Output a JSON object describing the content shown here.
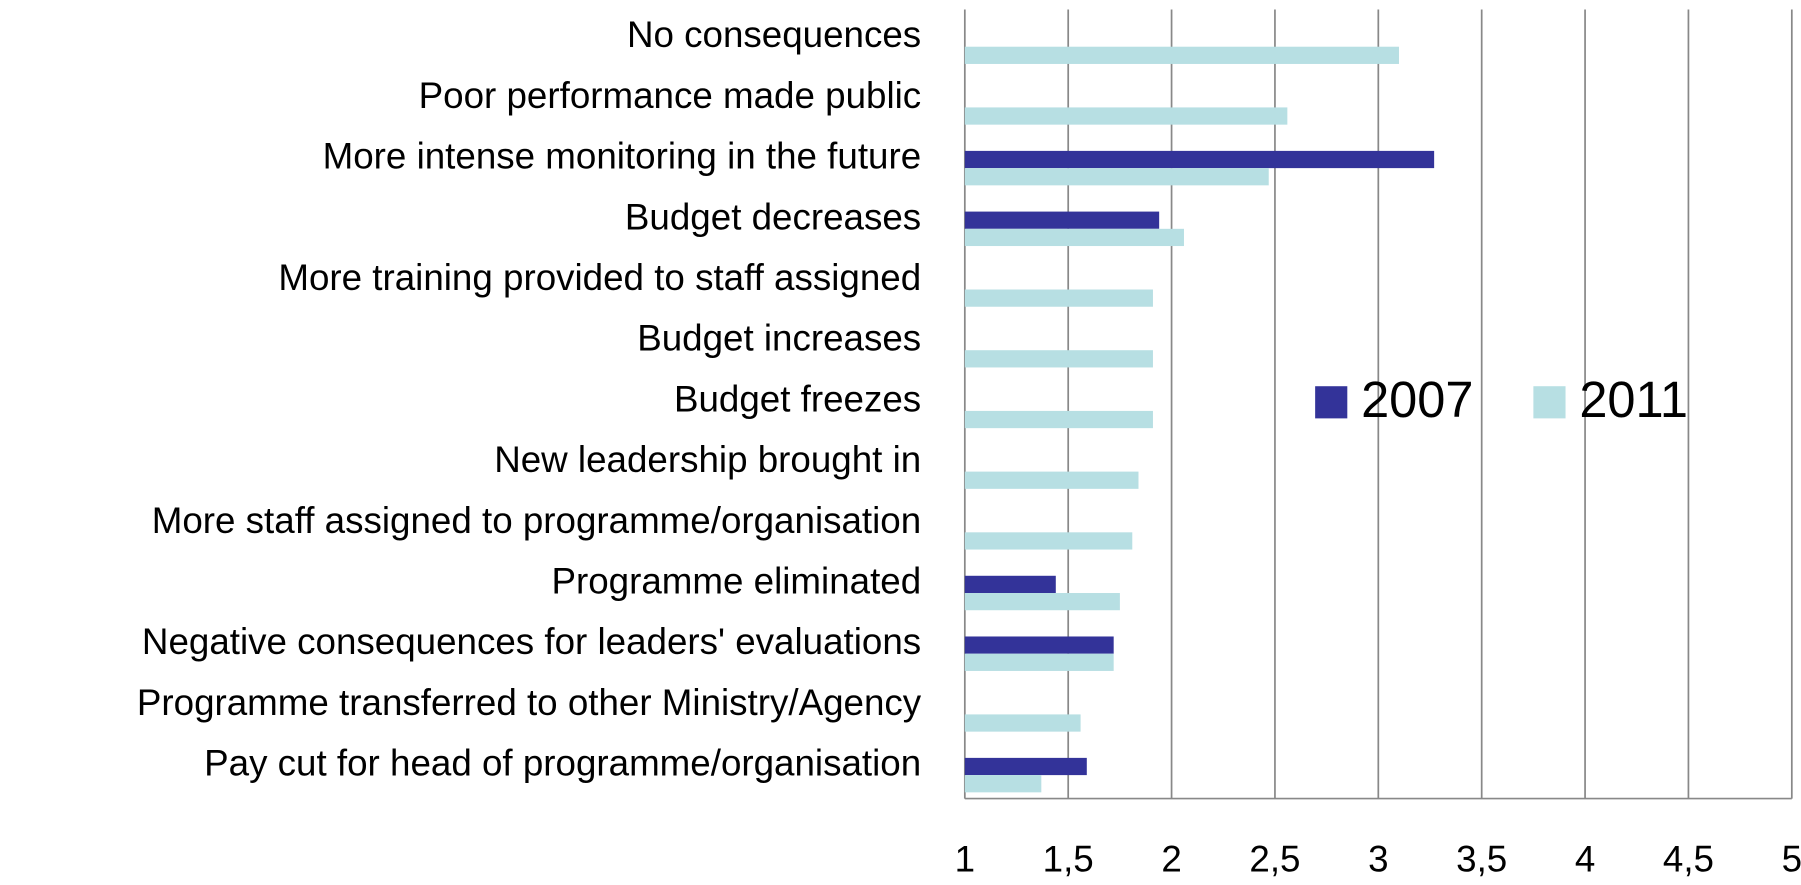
{
  "chart_data": {
    "type": "bar",
    "orientation": "horizontal",
    "categories": [
      "No consequences",
      "Poor performance made public",
      "More intense monitoring in the future",
      "Budget decreases",
      "More training provided to staff assigned",
      "Budget increases",
      "Budget freezes",
      "New leadership brought in",
      "More staff assigned to programme/organisation",
      "Programme eliminated",
      "Negative consequences for leaders' evaluations",
      "Programme transferred to other Ministry/Agency",
      "Pay cut for head of programme/organisation"
    ],
    "series": [
      {
        "name": "2007",
        "color": "#333399",
        "values": [
          null,
          null,
          3.27,
          1.94,
          null,
          null,
          null,
          null,
          null,
          1.44,
          1.72,
          null,
          1.59
        ]
      },
      {
        "name": "2011",
        "color": "#b7dfe3",
        "values": [
          3.1,
          2.56,
          2.47,
          2.06,
          1.91,
          1.91,
          1.91,
          1.84,
          1.81,
          1.75,
          1.72,
          1.56,
          1.37
        ]
      }
    ],
    "xlim": [
      1,
      5
    ],
    "xticks": [
      1,
      {
        "value": 1.5,
        "label": "1,5"
      },
      2,
      {
        "value": 2.5,
        "label": "2,5"
      },
      3,
      {
        "value": 3.5,
        "label": "3,5"
      },
      4,
      {
        "value": 4.5,
        "label": "4,5"
      },
      5
    ],
    "grid": true,
    "legend": "center"
  }
}
